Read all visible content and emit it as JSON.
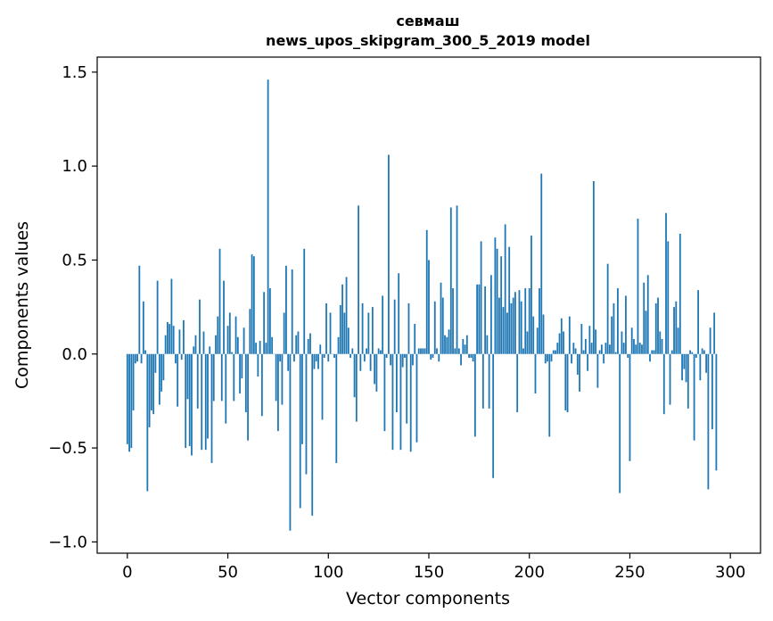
{
  "chart_data": {
    "type": "bar",
    "title_line1": "севмаш",
    "title_line2": "news_upos_skipgram_300_5_2019 model",
    "xlabel": "Vector components",
    "ylabel": "Components values",
    "xlim": [
      -15,
      315
    ],
    "ylim": [
      -1.06,
      1.58
    ],
    "xticks": [
      0,
      50,
      100,
      150,
      200,
      250,
      300
    ],
    "xtick_labels": [
      "0",
      "50",
      "100",
      "150",
      "200",
      "250",
      "300"
    ],
    "yticks": [
      -1.0,
      -0.5,
      0.0,
      0.5,
      1.0,
      1.5
    ],
    "ytick_labels": [
      "−1.0",
      "−0.5",
      "0.0",
      "0.5",
      "1.0",
      "1.5"
    ],
    "bar_color": "#1f77b4",
    "grid": false,
    "legend": "none",
    "values": [
      -0.48,
      -0.52,
      -0.5,
      -0.3,
      -0.05,
      -0.04,
      0.47,
      -0.05,
      0.28,
      0.02,
      -0.73,
      -0.39,
      -0.3,
      -0.32,
      -0.1,
      0.39,
      -0.27,
      -0.2,
      -0.14,
      0.1,
      0.17,
      0.16,
      0.4,
      0.15,
      -0.05,
      -0.28,
      0.13,
      -0.03,
      0.18,
      -0.5,
      -0.24,
      -0.49,
      -0.54,
      0.04,
      0.1,
      -0.29,
      0.29,
      -0.51,
      0.12,
      -0.51,
      -0.45,
      0.04,
      -0.58,
      -0.25,
      0.1,
      0.2,
      0.56,
      -0.25,
      0.39,
      -0.37,
      0.15,
      0.22,
      0.01,
      -0.25,
      0.2,
      0.09,
      -0.21,
      -0.13,
      0.14,
      -0.31,
      -0.46,
      0.24,
      0.53,
      0.52,
      0.06,
      -0.12,
      0.07,
      -0.33,
      0.33,
      0.06,
      1.46,
      0.35,
      0.09,
      0.0,
      -0.25,
      -0.41,
      -0.04,
      -0.27,
      0.22,
      0.47,
      -0.09,
      -0.94,
      0.45,
      -0.04,
      0.1,
      0.12,
      -0.82,
      -0.48,
      0.56,
      -0.64,
      0.08,
      0.11,
      -0.86,
      -0.08,
      -0.04,
      -0.08,
      0.05,
      -0.35,
      -0.02,
      0.27,
      -0.04,
      0.22,
      0.0,
      -0.02,
      -0.58,
      0.09,
      0.26,
      0.37,
      0.22,
      0.41,
      0.14,
      -0.02,
      0.03,
      -0.23,
      -0.36,
      0.79,
      -0.09,
      0.27,
      -0.04,
      0.03,
      0.22,
      -0.09,
      0.25,
      -0.16,
      -0.2,
      0.03,
      0.02,
      0.31,
      -0.41,
      -0.02,
      1.06,
      -0.06,
      -0.51,
      0.29,
      -0.31,
      0.43,
      -0.51,
      -0.07,
      -0.02,
      -0.37,
      0.27,
      -0.52,
      -0.06,
      0.16,
      -0.47,
      0.03,
      0.03,
      0.03,
      0.03,
      0.66,
      0.5,
      -0.03,
      -0.02,
      0.28,
      0.03,
      -0.04,
      0.38,
      0.3,
      0.1,
      0.09,
      0.13,
      0.78,
      0.35,
      0.03,
      0.79,
      0.03,
      -0.06,
      0.08,
      0.05,
      0.1,
      -0.02,
      -0.02,
      -0.04,
      -0.44,
      0.37,
      0.37,
      0.6,
      -0.29,
      0.36,
      0.1,
      -0.29,
      0.42,
      -0.66,
      0.62,
      0.56,
      0.3,
      0.52,
      0.25,
      0.69,
      0.22,
      0.57,
      0.27,
      0.3,
      0.33,
      -0.31,
      0.34,
      0.28,
      0.03,
      0.35,
      0.12,
      0.35,
      0.63,
      0.2,
      -0.21,
      0.14,
      0.35,
      0.96,
      0.21,
      -0.05,
      -0.04,
      -0.44,
      -0.04,
      0.02,
      0.02,
      0.06,
      0.11,
      0.19,
      0.12,
      -0.3,
      -0.31,
      0.2,
      -0.05,
      0.06,
      0.03,
      -0.11,
      -0.2,
      0.16,
      0.02,
      0.08,
      -0.09,
      0.15,
      0.06,
      0.92,
      0.13,
      -0.18,
      0.02,
      0.05,
      -0.05,
      0.06,
      0.48,
      0.05,
      0.2,
      0.27,
      0.01,
      0.35,
      -0.74,
      0.12,
      0.06,
      0.31,
      -0.02,
      -0.57,
      0.14,
      0.08,
      0.05,
      0.72,
      0.06,
      0.05,
      0.38,
      0.23,
      0.42,
      -0.04,
      0.02,
      0.02,
      0.27,
      0.3,
      0.12,
      0.08,
      -0.32,
      0.75,
      0.6,
      -0.27,
      0.02,
      0.25,
      0.28,
      0.14,
      0.64,
      -0.14,
      -0.08,
      -0.15,
      -0.29,
      0.02,
      0.01,
      -0.46,
      -0.02,
      0.34,
      -0.14,
      0.03,
      0.02,
      -0.1,
      -0.72,
      0.14,
      -0.4,
      0.22,
      -0.62
    ]
  }
}
